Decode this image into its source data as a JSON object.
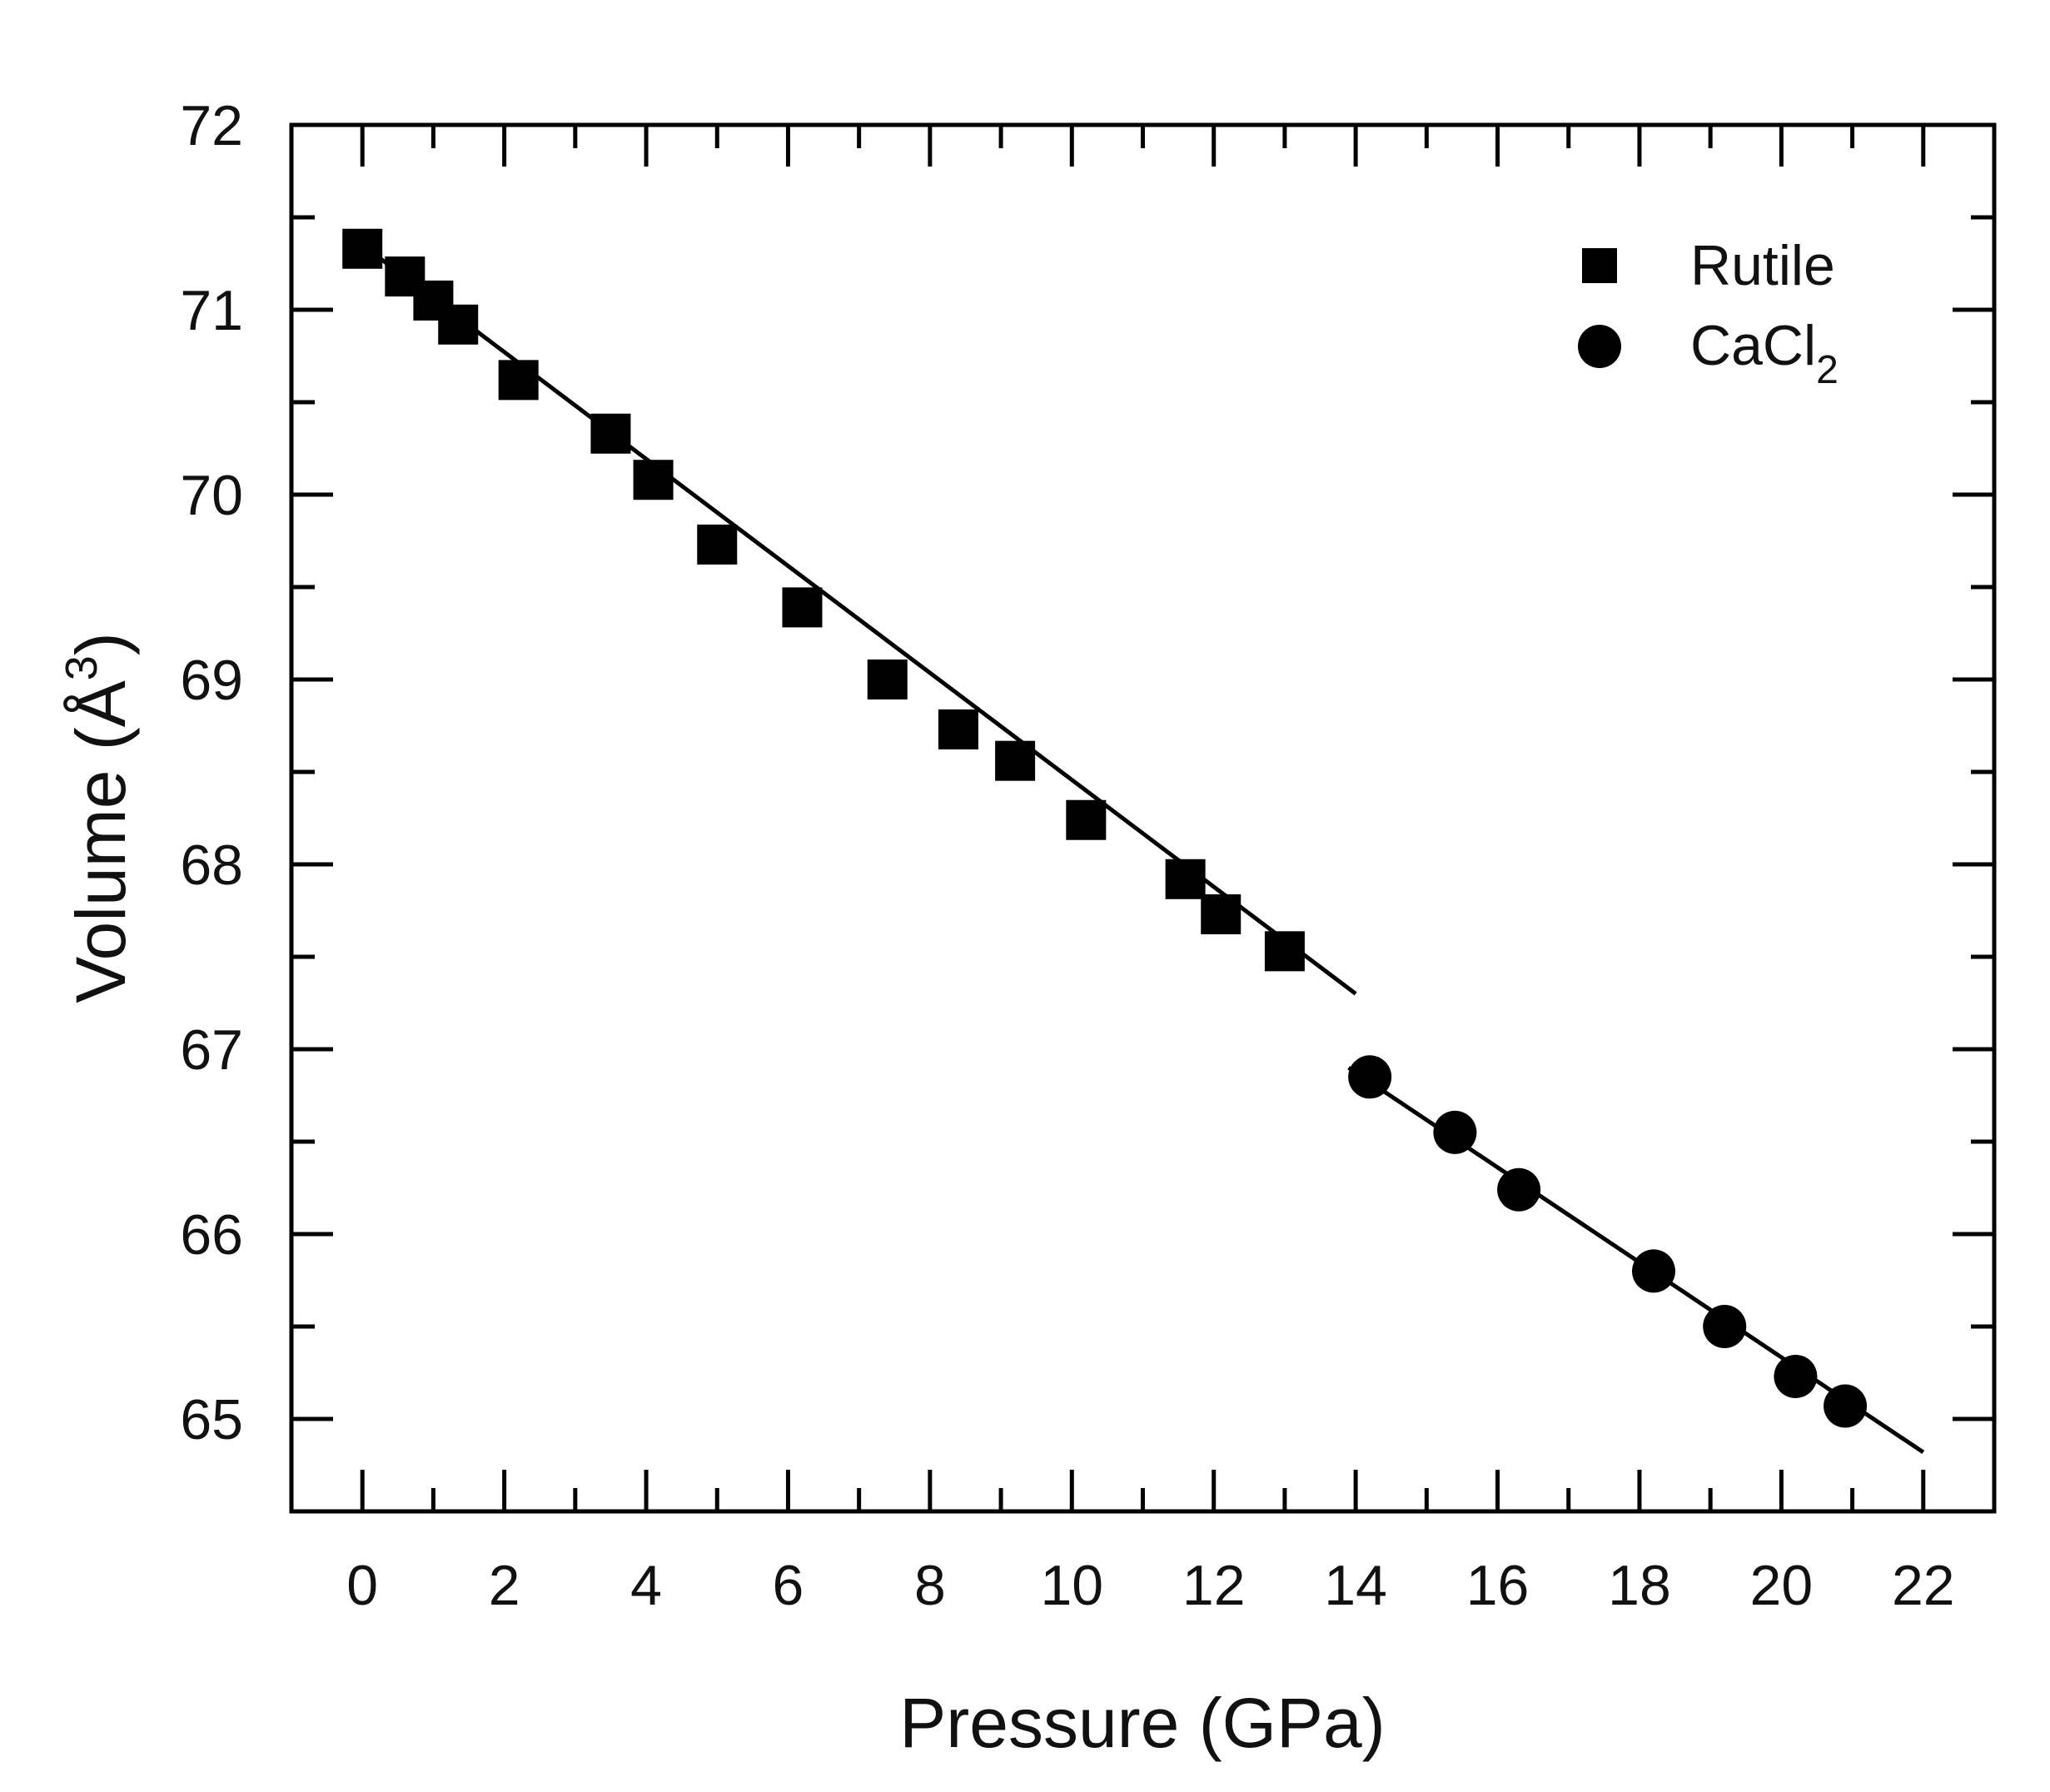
{
  "chart_data": {
    "type": "scatter",
    "title": "",
    "xlabel": "Pressure (GPa)",
    "ylabel": "Volume (Å³)",
    "ylabel_parts": {
      "main": "Volume (Å",
      "sup": "3",
      "close": ")"
    },
    "xlim": [
      -1,
      23
    ],
    "ylim": [
      64.5,
      72
    ],
    "xticks": [
      0,
      2,
      4,
      6,
      8,
      10,
      12,
      14,
      16,
      18,
      20,
      22
    ],
    "yticks": [
      65,
      66,
      67,
      68,
      69,
      70,
      71,
      72
    ],
    "grid": false,
    "legend_position": "top-right",
    "series": [
      {
        "name": "Rutile",
        "marker": "square",
        "color": "#000000",
        "legend": {
          "main": "Rutile",
          "sub": ""
        },
        "x": [
          0.0,
          0.6,
          1.0,
          1.35,
          2.2,
          3.5,
          4.1,
          5.0,
          6.2,
          7.4,
          8.4,
          9.2,
          10.2,
          11.6,
          12.1,
          13.0
        ],
        "y": [
          71.33,
          71.18,
          71.05,
          70.92,
          70.62,
          70.33,
          70.08,
          69.73,
          69.39,
          69.0,
          68.73,
          68.56,
          68.24,
          67.92,
          67.73,
          67.53
        ]
      },
      {
        "name": "CaCl2",
        "marker": "circle",
        "color": "#000000",
        "legend": {
          "main": "CaCl",
          "sub": "2"
        },
        "x": [
          14.2,
          15.4,
          16.3,
          18.2,
          19.2,
          20.2,
          20.9
        ],
        "y": [
          66.85,
          66.55,
          66.24,
          65.8,
          65.5,
          65.23,
          65.07
        ]
      }
    ],
    "fit_lines": [
      {
        "name": "rutile-fit",
        "x": [
          0.0,
          14.0
        ],
        "y": [
          71.35,
          67.3
        ]
      },
      {
        "name": "cacl2-fit",
        "x": [
          13.9,
          22.0
        ],
        "y": [
          66.9,
          64.82
        ]
      }
    ]
  }
}
